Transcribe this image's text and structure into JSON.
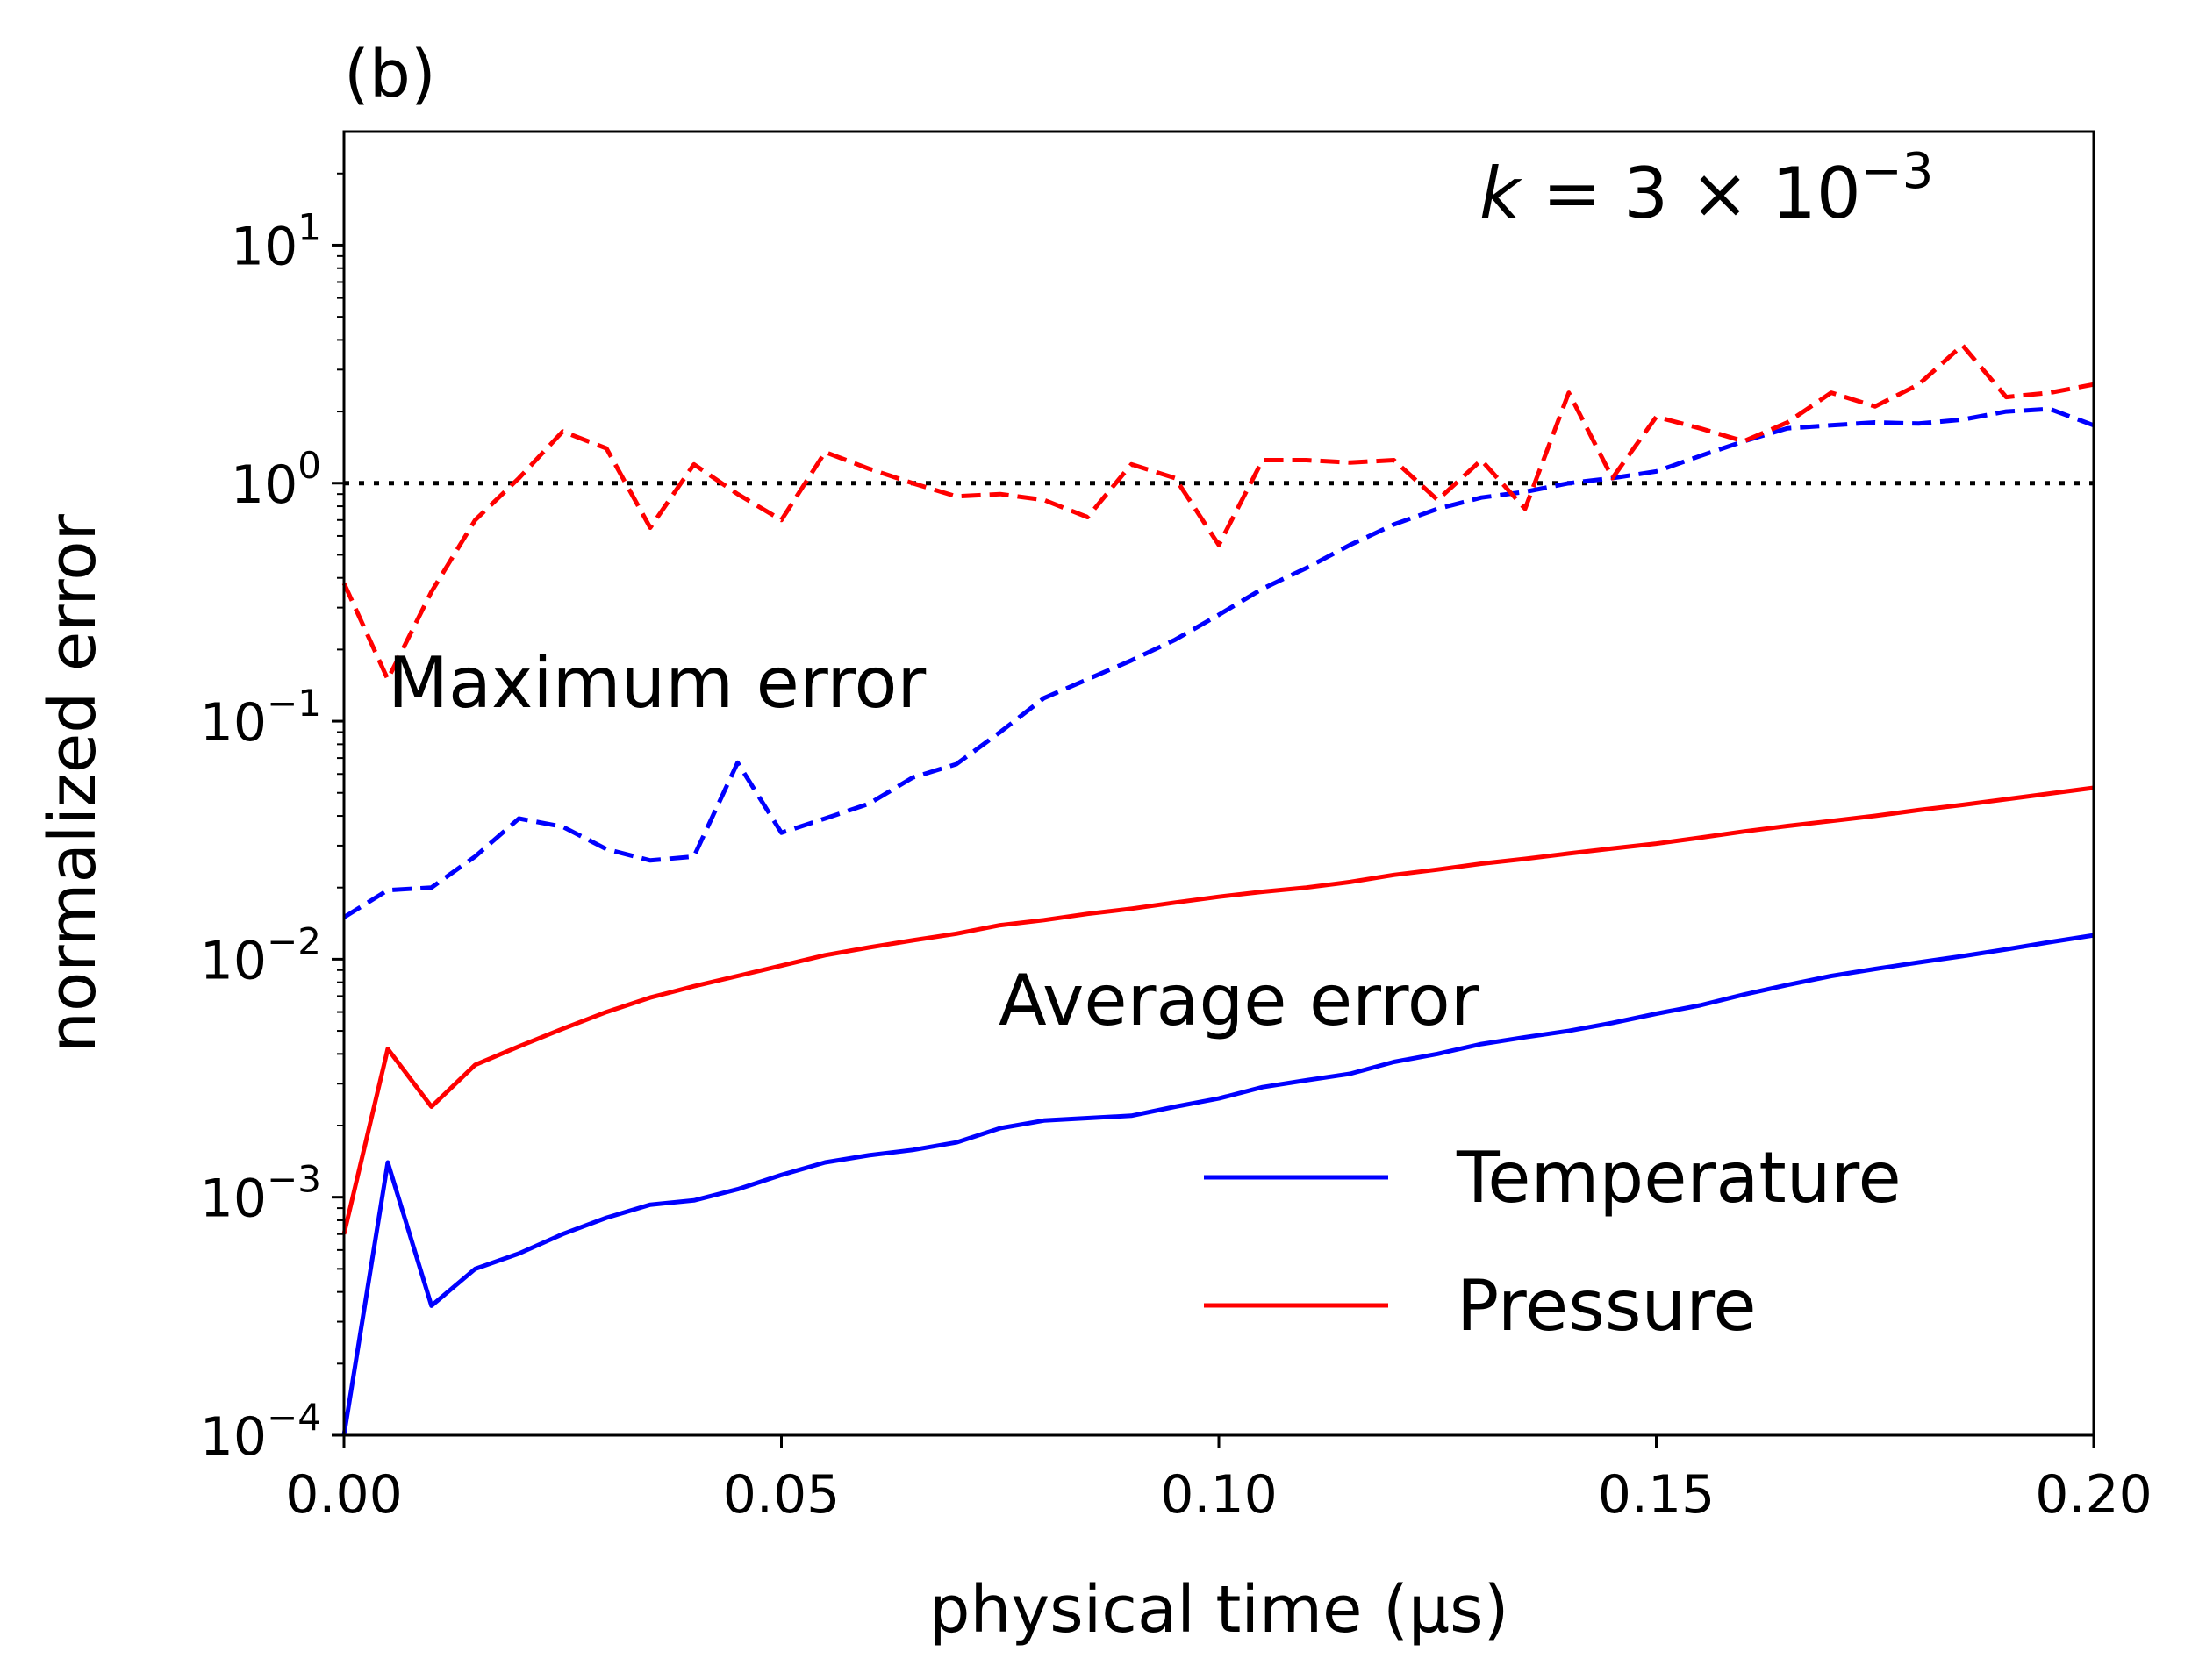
{
  "chart_data": {
    "type": "line",
    "panel_label": "(b)",
    "xlabel": "physical time (μs)",
    "ylabel": "normalized error",
    "xlim": [
      0.0,
      0.2
    ],
    "ylim": [
      0.0001,
      30
    ],
    "yscale": "log",
    "grid": false,
    "x_ticks": [
      0.0,
      0.05,
      0.1,
      0.15,
      0.2
    ],
    "x_tick_labels": [
      "0.00",
      "0.05",
      "0.10",
      "0.15",
      "0.20"
    ],
    "y_ticks": [
      0.0001,
      0.001,
      0.01,
      0.1,
      1,
      10
    ],
    "y_tick_labels": [
      {
        "base": "10",
        "exp": "−4"
      },
      {
        "base": "10",
        "exp": "−3"
      },
      {
        "base": "10",
        "exp": "−2"
      },
      {
        "base": "10",
        "exp": "−1"
      },
      {
        "base": "10",
        "exp": "0"
      },
      {
        "base": "10",
        "exp": "1"
      }
    ],
    "annotations": {
      "k_label": {
        "italic": "k",
        "rest": " = 3 × 10",
        "exp": "−3"
      },
      "maximum_error": "Maximum error",
      "average_error": "Average error"
    },
    "reference_line": {
      "y": 1.0,
      "style": "dotted",
      "color": "#000000"
    },
    "legend": {
      "placement": "lower-right",
      "entries": [
        {
          "label": "Temperature",
          "color": "#0000ff"
        },
        {
          "label": "Pressure",
          "color": "#ff0000"
        }
      ]
    },
    "x": [
      0.0,
      0.005,
      0.01,
      0.015,
      0.02,
      0.025,
      0.03,
      0.035,
      0.04,
      0.045,
      0.05,
      0.055,
      0.06,
      0.065,
      0.07,
      0.075,
      0.08,
      0.085,
      0.09,
      0.095,
      0.1,
      0.105,
      0.11,
      0.115,
      0.12,
      0.125,
      0.13,
      0.135,
      0.14,
      0.145,
      0.15,
      0.155,
      0.16,
      0.165,
      0.17,
      0.175,
      0.18,
      0.185,
      0.19,
      0.195,
      0.2
    ],
    "series": [
      {
        "name": "Temperature",
        "kind": "average",
        "color": "#0000ff",
        "dash": "solid",
        "values": [
          0.0001,
          0.0014,
          0.00035,
          0.0005,
          0.00058,
          0.0007,
          0.00082,
          0.00093,
          0.00097,
          0.00108,
          0.00124,
          0.0014,
          0.0015,
          0.00158,
          0.0017,
          0.00195,
          0.0021,
          0.00215,
          0.0022,
          0.0024,
          0.0026,
          0.0029,
          0.0031,
          0.0033,
          0.0037,
          0.004,
          0.0044,
          0.0047,
          0.005,
          0.0054,
          0.0059,
          0.0064,
          0.0071,
          0.0078,
          0.0085,
          0.0091,
          0.0097,
          0.0103,
          0.011,
          0.0118,
          0.0126
        ]
      },
      {
        "name": "Pressure",
        "kind": "average",
        "color": "#ff0000",
        "dash": "solid",
        "values": [
          0.0007,
          0.0042,
          0.0024,
          0.0036,
          0.0043,
          0.0051,
          0.006,
          0.0069,
          0.0077,
          0.0085,
          0.0094,
          0.0104,
          0.0112,
          0.012,
          0.0128,
          0.0139,
          0.0146,
          0.0155,
          0.0163,
          0.0173,
          0.0183,
          0.0192,
          0.02,
          0.0211,
          0.0226,
          0.0238,
          0.0252,
          0.0264,
          0.0278,
          0.0292,
          0.0306,
          0.0324,
          0.0344,
          0.0363,
          0.0381,
          0.04,
          0.0423,
          0.0445,
          0.047,
          0.0497,
          0.0525
        ]
      },
      {
        "name": "Temperature",
        "kind": "maximum",
        "color": "#0000ff",
        "dash": "dashed",
        "values": [
          0.015,
          0.0195,
          0.02,
          0.027,
          0.039,
          0.036,
          0.029,
          0.026,
          0.027,
          0.067,
          0.034,
          0.039,
          0.045,
          0.058,
          0.066,
          0.09,
          0.125,
          0.15,
          0.18,
          0.22,
          0.28,
          0.36,
          0.44,
          0.55,
          0.67,
          0.78,
          0.87,
          0.92,
          1.0,
          1.05,
          1.12,
          1.3,
          1.5,
          1.7,
          1.75,
          1.8,
          1.78,
          1.85,
          2.0,
          2.05,
          1.75
        ]
      },
      {
        "name": "Pressure",
        "kind": "maximum",
        "color": "#ff0000",
        "dash": "dashed",
        "values": [
          0.38,
          0.15,
          0.35,
          0.7,
          1.05,
          1.65,
          1.4,
          0.65,
          1.2,
          0.9,
          0.7,
          1.35,
          1.15,
          1.0,
          0.88,
          0.9,
          0.85,
          0.72,
          1.2,
          1.05,
          0.55,
          1.25,
          1.25,
          1.22,
          1.25,
          0.85,
          1.25,
          0.78,
          2.4,
          1.05,
          1.9,
          1.7,
          1.5,
          1.8,
          2.4,
          2.1,
          2.6,
          3.8,
          2.3,
          2.4,
          2.6
        ]
      }
    ]
  }
}
